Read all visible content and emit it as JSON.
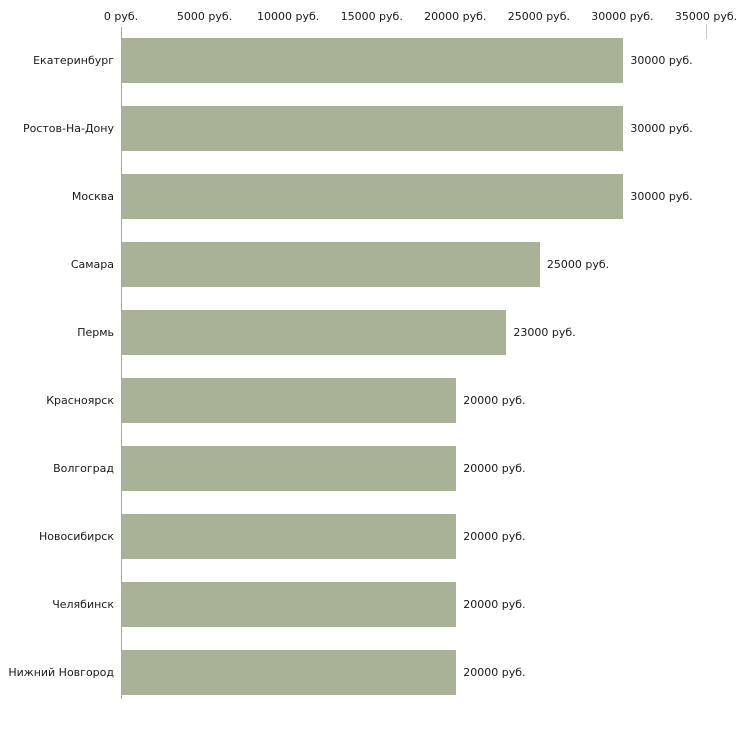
{
  "chart_data": {
    "type": "bar",
    "orientation": "horizontal",
    "title": "",
    "xlabel": "",
    "ylabel": "",
    "categories": [
      "Екатеринбург",
      "Ростов-На-Дону",
      "Москва",
      "Самара",
      "Пермь",
      "Красноярск",
      "Волгоград",
      "Новосибирск",
      "Челябинск",
      "Нижний Новгород"
    ],
    "values": [
      30000,
      30000,
      30000,
      25000,
      23000,
      20000,
      20000,
      20000,
      20000,
      20000
    ],
    "value_labels": [
      "30000 руб.",
      "30000 руб.",
      "30000 руб.",
      "25000 руб.",
      "23000 руб.",
      "20000 руб.",
      "20000 руб.",
      "20000 руб.",
      "20000 руб.",
      "20000 руб."
    ],
    "x_axis": {
      "position": "top",
      "min": 0,
      "max": 35000,
      "ticks": [
        0,
        5000,
        10000,
        15000,
        20000,
        25000,
        30000,
        35000
      ],
      "tick_labels": [
        "0 руб.",
        "5000 руб.",
        "10000 руб.",
        "15000 руб.",
        "20000 руб.",
        "25000 руб.",
        "30000 руб.",
        "35000 руб."
      ]
    },
    "bar_color": "#a9b296",
    "axis_color": "#a9a9a9",
    "grid": false,
    "legend": false
  }
}
